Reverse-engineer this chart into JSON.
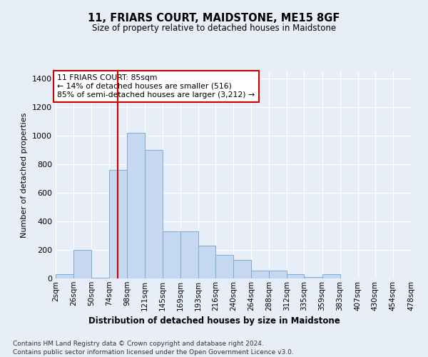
{
  "title": "11, FRIARS COURT, MAIDSTONE, ME15 8GF",
  "subtitle": "Size of property relative to detached houses in Maidstone",
  "xlabel": "Distribution of detached houses by size in Maidstone",
  "ylabel": "Number of detached properties",
  "footnote1": "Contains HM Land Registry data © Crown copyright and database right 2024.",
  "footnote2": "Contains public sector information licensed under the Open Government Licence v3.0.",
  "bar_color": "#c5d8f0",
  "bar_edge_color": "#7aadd4",
  "bg_color": "#e8eef8",
  "plot_bg_color": "#e8eef8",
  "grid_color": "#ffffff",
  "red_line_x": 85,
  "annotation_text": "11 FRIARS COURT: 85sqm\n← 14% of detached houses are smaller (516)\n85% of semi-detached houses are larger (3,212) →",
  "annotation_box_color": "#ffffff",
  "annotation_border_color": "#cc0000",
  "bins": [
    2,
    26,
    50,
    74,
    98,
    121,
    145,
    169,
    193,
    216,
    240,
    264,
    288,
    312,
    335,
    359,
    383,
    407,
    430,
    454,
    478
  ],
  "counts": [
    28,
    200,
    5,
    760,
    1020,
    900,
    330,
    330,
    230,
    165,
    130,
    55,
    55,
    28,
    10,
    28,
    0,
    0,
    0,
    0,
    0
  ],
  "ylim": [
    0,
    1450
  ],
  "yticks": [
    0,
    200,
    400,
    600,
    800,
    1000,
    1200,
    1400
  ]
}
